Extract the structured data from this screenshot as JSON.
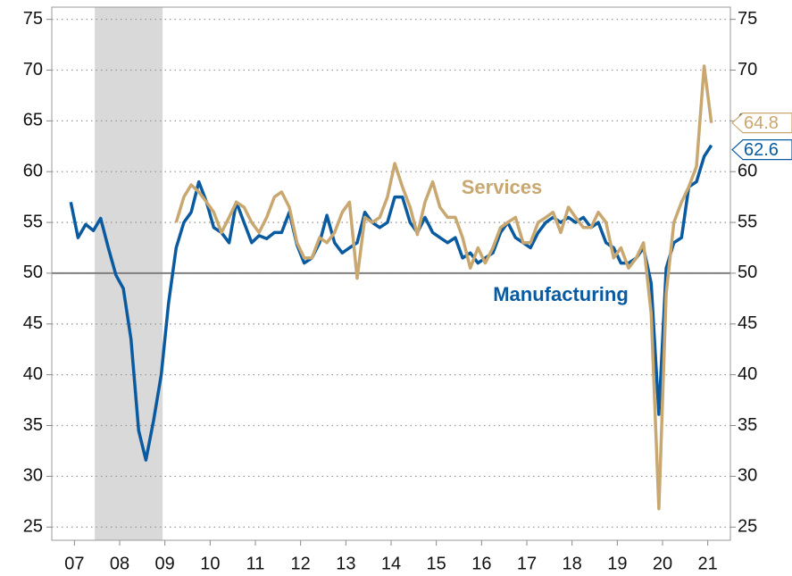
{
  "chart_data": {
    "type": "line",
    "x": [
      2007.42,
      2007.58,
      2007.75,
      2007.92,
      2008.08,
      2008.25,
      2008.42,
      2008.58,
      2008.75,
      2008.92,
      2009.08,
      2009.25,
      2009.42,
      2009.58,
      2009.75,
      2009.92,
      2010.08,
      2010.25,
      2010.42,
      2010.58,
      2010.75,
      2010.92,
      2011.08,
      2011.25,
      2011.42,
      2011.58,
      2011.75,
      2011.92,
      2012.08,
      2012.25,
      2012.42,
      2012.58,
      2012.75,
      2012.92,
      2013.08,
      2013.25,
      2013.42,
      2013.58,
      2013.75,
      2013.92,
      2014.08,
      2014.25,
      2014.42,
      2014.58,
      2014.75,
      2014.92,
      2015.08,
      2015.25,
      2015.42,
      2015.58,
      2015.75,
      2015.92,
      2016.08,
      2016.25,
      2016.42,
      2016.58,
      2016.75,
      2016.92,
      2017.08,
      2017.25,
      2017.42,
      2017.58,
      2017.75,
      2017.92,
      2018.08,
      2018.25,
      2018.42,
      2018.58,
      2018.75,
      2018.92,
      2019.08,
      2019.25,
      2019.42,
      2019.58,
      2019.75,
      2019.92,
      2020.08,
      2020.25,
      2020.42,
      2020.58,
      2020.75,
      2020.92,
      2021.08,
      2021.25,
      2021.42,
      2021.58
    ],
    "series": [
      {
        "name": "Manufacturing",
        "color": "#0a5aa0",
        "values": [
          57,
          53.5,
          54.8,
          54.2,
          55.4,
          52.5,
          49.8,
          48.5,
          43.5,
          34.5,
          31.6,
          35.5,
          40,
          47,
          52.5,
          55,
          56,
          59,
          57,
          54.5,
          54,
          53,
          57,
          55,
          53,
          53.7,
          53.4,
          54,
          54,
          56,
          52.8,
          51,
          51.5,
          53,
          55.7,
          53,
          52,
          52.5,
          53,
          56,
          55,
          54.5,
          55,
          57.5,
          57.5,
          55,
          54,
          55.5,
          54,
          53.5,
          53,
          53.5,
          51.5,
          52,
          51,
          51.5,
          52,
          54,
          55,
          53.5,
          53,
          52.5,
          54,
          55,
          55.5,
          55,
          55.5,
          55,
          55.5,
          54.5,
          55,
          53,
          52.5,
          51,
          51,
          51.5,
          52.5,
          49,
          36.1,
          50.5,
          53,
          53.5,
          58.5,
          59,
          61.5,
          62.6
        ]
      },
      {
        "name": "Services",
        "color": "#c8a870",
        "axis": "y2",
        "values": [
          null,
          null,
          null,
          null,
          null,
          null,
          null,
          null,
          null,
          null,
          null,
          null,
          null,
          null,
          55,
          57.5,
          58.7,
          58,
          57,
          56,
          54,
          55.5,
          57,
          56.5,
          55,
          54,
          55.5,
          57.5,
          58,
          56.5,
          53,
          51.5,
          51.5,
          53.5,
          53,
          54,
          56,
          57,
          49.5,
          55.5,
          55,
          55.5,
          57.5,
          60.8,
          58.5,
          56.5,
          53.8,
          57,
          59,
          56.5,
          55.5,
          55.5,
          53.5,
          50.5,
          52.5,
          51,
          52.5,
          54.5,
          55,
          55.5,
          53,
          53,
          55,
          55.5,
          56,
          54,
          56.5,
          55.5,
          54.5,
          54.5,
          56,
          55,
          51.5,
          52.5,
          50.5,
          51.5,
          53,
          46,
          26.8,
          48,
          55,
          57,
          58.5,
          60.5,
          70.4,
          64.8
        ]
      }
    ],
    "xlim": [
      2007.0,
      2022.0
    ],
    "xticks": [
      {
        "value": 2007.5,
        "label": "07"
      },
      {
        "value": 2008.5,
        "label": "08"
      },
      {
        "value": 2009.5,
        "label": "09"
      },
      {
        "value": 2010.5,
        "label": "10"
      },
      {
        "value": 2011.5,
        "label": "11"
      },
      {
        "value": 2012.5,
        "label": "12"
      },
      {
        "value": 2013.5,
        "label": "13"
      },
      {
        "value": 2014.5,
        "label": "14"
      },
      {
        "value": 2015.5,
        "label": "15"
      },
      {
        "value": 2016.5,
        "label": "16"
      },
      {
        "value": 2017.5,
        "label": "17"
      },
      {
        "value": 2018.5,
        "label": "18"
      },
      {
        "value": 2019.5,
        "label": "19"
      },
      {
        "value": 2020.5,
        "label": "20"
      },
      {
        "value": 2021.5,
        "label": "21"
      }
    ],
    "ylim": [
      23.7,
      76.2
    ],
    "yticks": [
      25,
      30,
      35,
      40,
      45,
      50,
      55,
      60,
      65,
      70,
      75
    ],
    "y2lim": [
      23.7,
      76.2
    ],
    "y2ticks": [
      25,
      30,
      35,
      40,
      45,
      50,
      55,
      60,
      65,
      70,
      75
    ],
    "grid": true,
    "reference_line": 50,
    "shaded_range": [
      2007.95,
      2009.45
    ]
  }
}
